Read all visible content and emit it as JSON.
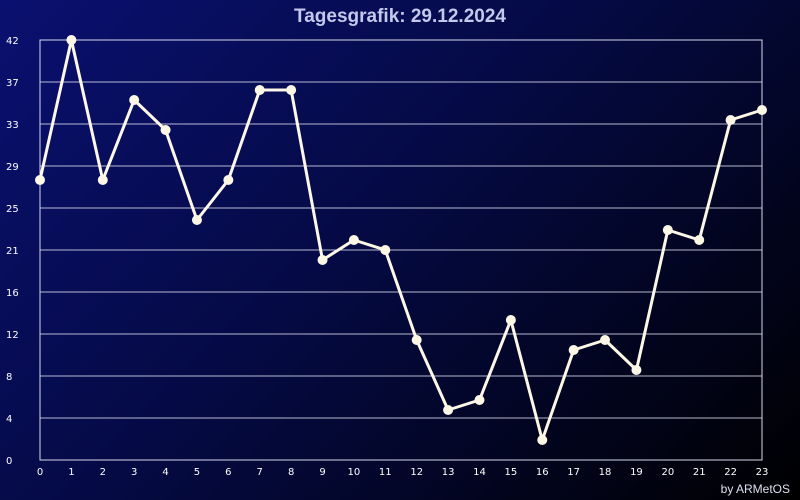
{
  "title": "Tagesgrafik: 29.12.2024",
  "credit": "by ARMetOS",
  "colors": {
    "line": "#fdf8e6",
    "grid": "#d5d8ea",
    "background_start": "#0a1070",
    "background_end": "#000000"
  },
  "chart_data": {
    "type": "line",
    "title": "Tagesgrafik: 29.12.2024",
    "xlabel": "",
    "ylabel": "",
    "x": [
      0,
      1,
      2,
      3,
      4,
      5,
      6,
      7,
      8,
      9,
      10,
      11,
      12,
      13,
      14,
      15,
      16,
      17,
      18,
      19,
      20,
      21,
      22,
      23
    ],
    "y_tick_labels": [
      "0",
      "4",
      "8",
      "12",
      "16",
      "21",
      "25",
      "29",
      "33",
      "37",
      "42"
    ],
    "ylim": [
      0,
      42
    ],
    "grid": true,
    "legend": "none",
    "series": [
      {
        "name": "",
        "values": [
          28,
          42,
          28,
          36,
          33,
          24,
          28,
          37,
          37,
          20,
          22,
          21,
          12,
          5,
          6,
          14,
          2,
          11,
          12,
          9,
          23,
          22,
          34,
          35
        ]
      }
    ]
  }
}
